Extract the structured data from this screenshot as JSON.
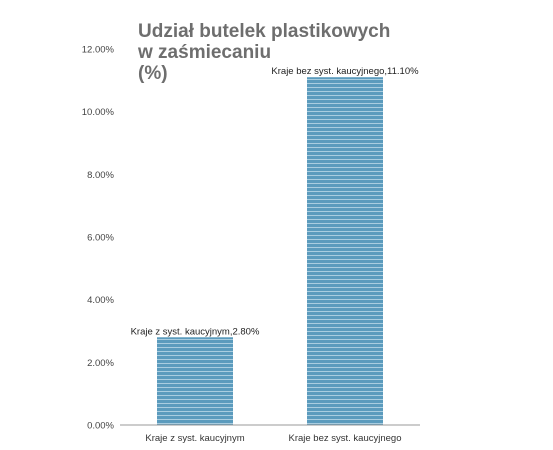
{
  "chart_data": {
    "type": "bar",
    "title_lines": [
      "Udział butelek plastikowych",
      "w zaśmiecaniu",
      "(%)"
    ],
    "categories": [
      "Kraje z syst. kaucyjnym",
      "Kraje bez syst. kaucyjnego"
    ],
    "values": [
      2.8,
      11.1
    ],
    "data_labels": [
      "Kraje z syst. kaucyjnym,2.80%",
      "Kraje bez syst. kaucyjnego,11.10%"
    ],
    "y_ticks": [
      0,
      2,
      4,
      6,
      8,
      10,
      12
    ],
    "y_tick_labels": [
      "0.00%",
      "2.00%",
      "4.00%",
      "6.00%",
      "8.00%",
      "10.00%",
      "12.00%"
    ],
    "ylim": [
      0,
      12
    ],
    "xlabel": "",
    "ylabel": "",
    "grid": false,
    "bar_color": "#5b9bbd",
    "stripe_color": "#a9cde0",
    "axis_color": "#999999"
  }
}
